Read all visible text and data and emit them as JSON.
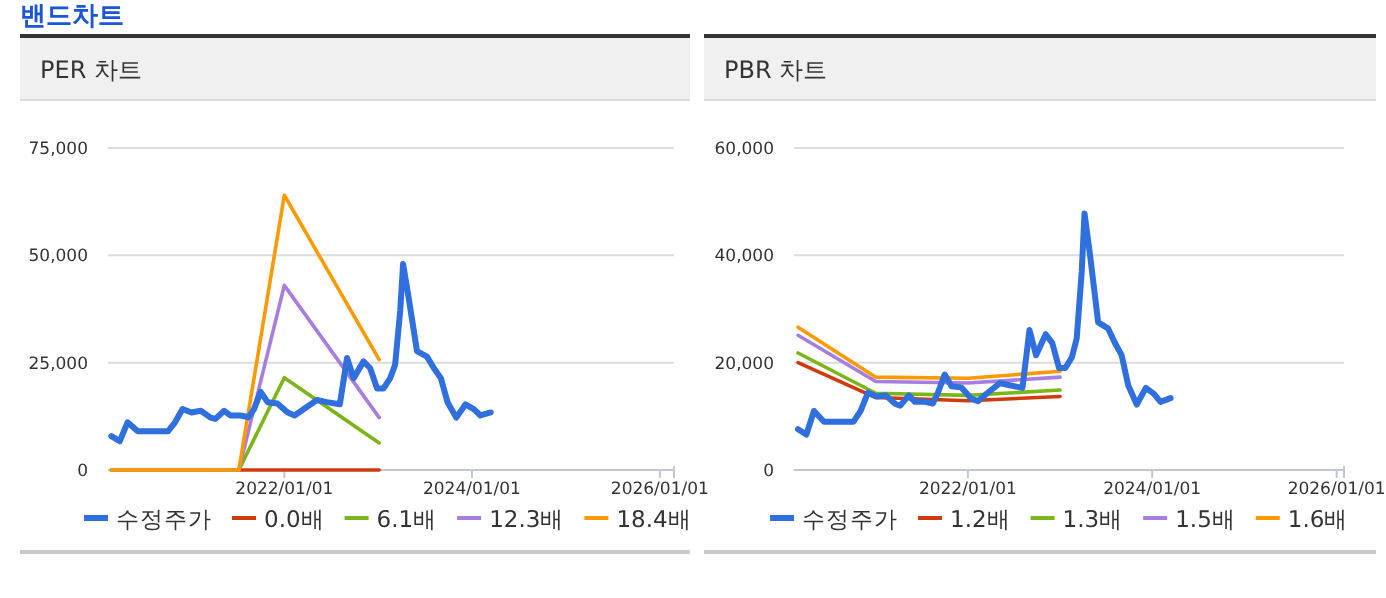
{
  "chart_data": [
    {
      "type": "line",
      "title": "PER 차트",
      "annotations": [
        "밴드차트"
      ],
      "xlim": [
        "2020-02-15",
        "2026-02-25"
      ],
      "xticks": [
        {
          "value": "2022-01-01",
          "label": "2022/01/01"
        },
        {
          "value": "2024-01-01",
          "label": "2024/01/01"
        },
        {
          "value": "2026-01-01",
          "label": "2026/01/01"
        }
      ],
      "ylim": [
        0,
        75000
      ],
      "yticks": [
        0,
        {
          "value": 25000,
          "label": "25,000"
        },
        {
          "value": 50000,
          "label": "50,000"
        },
        {
          "value": 75000,
          "label": "75,000"
        }
      ],
      "grid": "y",
      "legend": "bottom",
      "marker": "none",
      "line_style": "solid",
      "series": [
        {
          "name": "수정주가",
          "color": "#2f6fde",
          "x": [
            "2020-02-28",
            "2020-04-01",
            "2020-05-01",
            "2020-06-10",
            "2020-10-05",
            "2020-11-02",
            "2020-12-01",
            "2021-01-05",
            "2021-02-10",
            "2021-03-20",
            "2021-04-08",
            "2021-05-12",
            "2021-06-05",
            "2021-07-15",
            "2021-08-15",
            "2021-09-05",
            "2021-10-01",
            "2021-10-28",
            "2021-12-05",
            "2022-01-14",
            "2022-02-10",
            "2022-03-18",
            "2022-05-08",
            "2022-06-15",
            "2022-08-05",
            "2022-09-02",
            "2022-09-28",
            "2022-11-05",
            "2022-12-01",
            "2022-12-28",
            "2023-01-22",
            "2023-02-17",
            "2023-03-08",
            "2023-03-28",
            "2023-04-08",
            "2023-04-30",
            "2023-06-01",
            "2023-07-10",
            "2023-08-06",
            "2023-09-02",
            "2023-09-28",
            "2023-11-01",
            "2023-12-07",
            "2024-01-08",
            "2024-02-03",
            "2024-03-14"
          ],
          "values": [
            7900,
            6700,
            11100,
            9000,
            9000,
            11100,
            14200,
            13400,
            13800,
            12200,
            11900,
            13800,
            12700,
            12700,
            12300,
            14200,
            18200,
            15800,
            15500,
            13400,
            12700,
            14200,
            16300,
            15800,
            15300,
            26100,
            21400,
            25300,
            23700,
            19000,
            19000,
            21400,
            24500,
            37200,
            48000,
            40000,
            27700,
            26400,
            23700,
            21400,
            15800,
            12200,
            15300,
            14200,
            12700,
            13400
          ]
        },
        {
          "name": "0.0배",
          "color": "#d03a0c",
          "x": [
            "2020-02-28",
            "2021-07-08",
            "2022-01-01",
            "2023-01-05"
          ],
          "values": [
            0,
            0,
            0,
            0
          ]
        },
        {
          "name": "6.1배",
          "color": "#7cb518",
          "x": [
            "2020-02-28",
            "2021-07-08",
            "2022-01-01",
            "2023-01-05"
          ],
          "values": [
            0,
            0,
            21500,
            6300
          ]
        },
        {
          "name": "12.3배",
          "color": "#a77de0",
          "x": [
            "2020-02-28",
            "2021-07-08",
            "2022-01-01",
            "2023-01-05"
          ],
          "values": [
            0,
            0,
            43000,
            12200
          ]
        },
        {
          "name": "18.4배",
          "color": "#ff9900",
          "x": [
            "2020-02-28",
            "2021-07-08",
            "2022-01-01",
            "2023-01-05"
          ],
          "values": [
            0,
            0,
            64000,
            25700
          ]
        }
      ]
    },
    {
      "type": "line",
      "title": "PBR 차트",
      "xlim": [
        "2020-02-12",
        "2026-01-30"
      ],
      "xticks": [
        {
          "value": "2022-01-01",
          "label": "2022/01/01"
        },
        {
          "value": "2024-01-01",
          "label": "2024/01/01"
        },
        {
          "value": "2026-01-01",
          "label": "2026/01/01"
        }
      ],
      "ylim": [
        0,
        60000
      ],
      "yticks": [
        0,
        {
          "value": 20000,
          "label": "20,000"
        },
        {
          "value": 40000,
          "label": "40,000"
        },
        {
          "value": 60000,
          "label": "60,000"
        }
      ],
      "grid": "y",
      "legend": "bottom",
      "marker": "none",
      "line_style": "solid",
      "series": [
        {
          "name": "수정주가",
          "color": "#2f6fde",
          "x": [
            "2020-02-28",
            "2020-04-01",
            "2020-05-01",
            "2020-06-10",
            "2020-10-05",
            "2020-11-02",
            "2020-12-01",
            "2021-01-05",
            "2021-02-10",
            "2021-03-20",
            "2021-04-08",
            "2021-05-12",
            "2021-06-05",
            "2021-07-15",
            "2021-08-15",
            "2021-09-05",
            "2021-10-01",
            "2021-10-28",
            "2021-12-05",
            "2022-01-14",
            "2022-02-10",
            "2022-03-18",
            "2022-05-08",
            "2022-06-15",
            "2022-08-05",
            "2022-09-02",
            "2022-09-28",
            "2022-11-05",
            "2022-12-01",
            "2022-12-28",
            "2023-01-22",
            "2023-02-17",
            "2023-03-08",
            "2023-03-28",
            "2023-04-08",
            "2023-04-30",
            "2023-06-01",
            "2023-07-10",
            "2023-08-06",
            "2023-09-02",
            "2023-09-28",
            "2023-11-01",
            "2023-12-07",
            "2024-01-08",
            "2024-02-03",
            "2024-03-14"
          ],
          "values": [
            7600,
            6600,
            11000,
            9000,
            9000,
            11000,
            14400,
            13700,
            13900,
            12300,
            12000,
            13900,
            12700,
            12700,
            12400,
            14500,
            17800,
            15600,
            15400,
            13300,
            12800,
            14300,
            16200,
            15800,
            15300,
            26100,
            21400,
            25300,
            23700,
            19000,
            19000,
            21000,
            24500,
            37000,
            47800,
            40000,
            27500,
            26400,
            23700,
            21400,
            15800,
            12200,
            15300,
            14200,
            12700,
            13400
          ]
        },
        {
          "name": "1.2배",
          "color": "#d03a0c",
          "x": [
            "2020-02-28",
            "2021-01-01",
            "2022-01-01",
            "2023-01-01"
          ],
          "values": [
            20000,
            13500,
            12900,
            13700
          ]
        },
        {
          "name": "1.3배",
          "color": "#7cb518",
          "x": [
            "2020-02-28",
            "2021-01-01",
            "2022-01-01",
            "2023-01-01"
          ],
          "values": [
            21800,
            14300,
            13900,
            14900
          ]
        },
        {
          "name": "1.5배",
          "color": "#a77de0",
          "x": [
            "2020-02-28",
            "2021-01-01",
            "2022-01-01",
            "2023-01-01"
          ],
          "values": [
            25100,
            16500,
            16200,
            17300
          ]
        },
        {
          "name": "1.6배",
          "color": "#ff9900",
          "x": [
            "2020-02-28",
            "2021-01-01",
            "2022-01-01",
            "2023-01-01"
          ],
          "values": [
            26600,
            17300,
            17100,
            18400
          ]
        }
      ]
    }
  ]
}
